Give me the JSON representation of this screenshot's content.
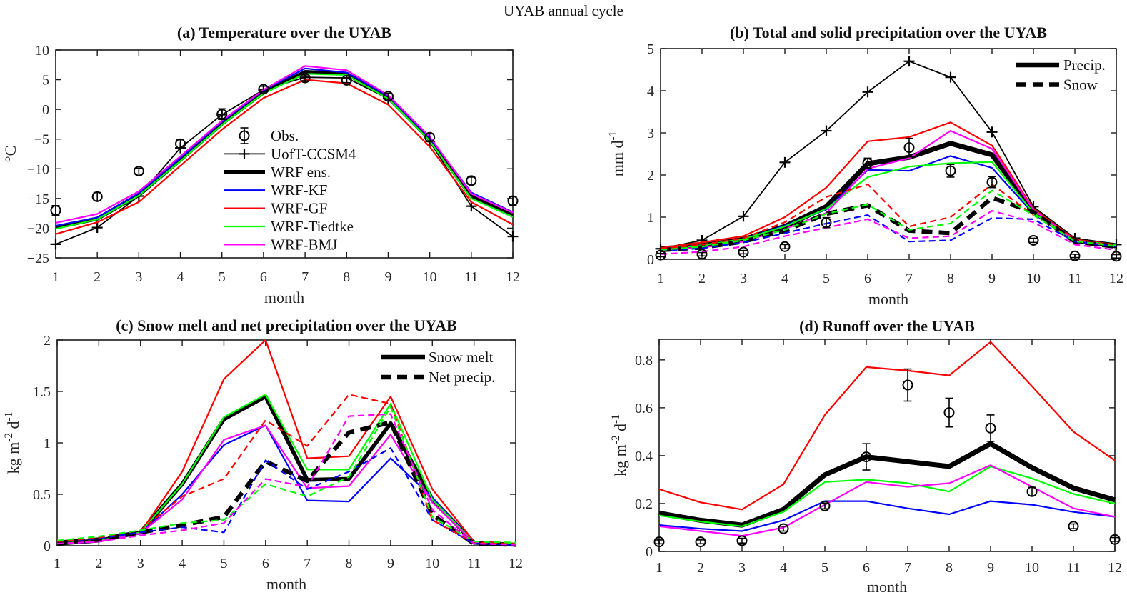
{
  "figure": {
    "title": "UYAB annual cycle"
  },
  "colors": {
    "obs": "#000000",
    "uoft_ccsm4": "#000000",
    "wrf_ens": "#000000",
    "wrf_kf": "#0000ff",
    "wrf_gf": "#ff0000",
    "wrf_tiedtke": "#00ff00",
    "wrf_bmj": "#ff00ff",
    "axis": "#1a1a1a"
  },
  "chart_data": [
    {
      "id": "a",
      "type": "line",
      "title": "(a) Temperature over the UYAB",
      "xlabel": "month",
      "ylabel": "°C",
      "x": [
        1,
        2,
        3,
        4,
        5,
        6,
        7,
        8,
        9,
        10,
        11,
        12
      ],
      "xlim": [
        1,
        12
      ],
      "ylim": [
        -25,
        10
      ],
      "yticks": [
        -25,
        -20,
        -15,
        -10,
        -5,
        0,
        5,
        10
      ],
      "grid": false,
      "legend": {
        "position": "inside-center-left",
        "entries": [
          {
            "label": "Obs.",
            "swatch": "circle-err",
            "color": "#000000"
          },
          {
            "label": "UofT-CCSM4",
            "swatch": "line-plus",
            "color": "#000000",
            "width": 1.8
          },
          {
            "label": "WRF ens.",
            "swatch": "line",
            "color": "#000000",
            "width": 5.5
          },
          {
            "label": "WRF-KF",
            "swatch": "line",
            "color": "#0000ff",
            "width": 2.2
          },
          {
            "label": "WRF-GF",
            "swatch": "line",
            "color": "#ff0000",
            "width": 2.2
          },
          {
            "label": "WRF-Tiedtke",
            "swatch": "line",
            "color": "#00ff00",
            "width": 2.2
          },
          {
            "label": "WRF-BMJ",
            "swatch": "line",
            "color": "#ff00ff",
            "width": 2.2
          }
        ]
      },
      "series": [
        {
          "name": "UofT-CCSM4",
          "color": "#000000",
          "style": "solid",
          "width": 1.8,
          "marker": "plus",
          "values": [
            -22.7,
            -19.9,
            -14.6,
            -6.5,
            -0.9,
            3.3,
            5.4,
            5.3,
            1.8,
            -5.4,
            -16.3,
            -21.4
          ]
        },
        {
          "name": "WRF ens.",
          "color": "#000000",
          "style": "solid",
          "width": 5.5,
          "values": [
            -19.9,
            -18.4,
            -14.4,
            -8.5,
            -2.4,
            2.9,
            6.3,
            6.0,
            2.0,
            -5.0,
            -14.7,
            -17.9
          ]
        },
        {
          "name": "WRF-KF",
          "color": "#0000ff",
          "style": "solid",
          "width": 2.2,
          "values": [
            -19.6,
            -18.2,
            -14.1,
            -8.2,
            -2.1,
            3.2,
            6.9,
            6.2,
            2.2,
            -4.8,
            -14.0,
            -17.3
          ]
        },
        {
          "name": "WRF-GF",
          "color": "#ff0000",
          "style": "solid",
          "width": 2.2,
          "values": [
            -21.0,
            -19.0,
            -15.6,
            -9.5,
            -3.4,
            1.9,
            5.0,
            4.4,
            0.8,
            -6.3,
            -15.6,
            -19.4
          ]
        },
        {
          "name": "WRF-Tiedtke",
          "color": "#00ff00",
          "style": "solid",
          "width": 2.2,
          "values": [
            -20.1,
            -18.5,
            -14.5,
            -8.7,
            -2.6,
            2.7,
            6.0,
            5.8,
            1.8,
            -5.3,
            -15.0,
            -18.1
          ]
        },
        {
          "name": "WRF-BMJ",
          "color": "#ff00ff",
          "style": "solid",
          "width": 2.2,
          "values": [
            -19.1,
            -17.6,
            -13.8,
            -7.9,
            -1.9,
            3.3,
            7.3,
            6.6,
            2.4,
            -4.6,
            -14.2,
            -17.4
          ]
        },
        {
          "name": "Obs.",
          "color": "#000000",
          "style": "none",
          "marker": "circle",
          "values": [
            -17.0,
            -14.7,
            -10.4,
            -5.8,
            -0.8,
            3.4,
            5.3,
            4.9,
            2.2,
            -4.7,
            -12.0,
            -15.4
          ],
          "errors": [
            0.8,
            0.7,
            0.5,
            0.7,
            0.9,
            0.5,
            0.5,
            0.4,
            0.5,
            0.6,
            0.6,
            0.7
          ]
        }
      ]
    },
    {
      "id": "b",
      "type": "line",
      "title": "(b) Total and solid precipitation over the UYAB",
      "xlabel": "month",
      "ylabel": "mm d^{-1}",
      "x": [
        1,
        2,
        3,
        4,
        5,
        6,
        7,
        8,
        9,
        10,
        11,
        12
      ],
      "xlim": [
        1,
        12
      ],
      "ylim": [
        0,
        5
      ],
      "yticks": [
        0,
        1,
        2,
        3,
        4,
        5
      ],
      "grid": false,
      "legend": {
        "position": "top-right",
        "entries": [
          {
            "label": "Precip.",
            "swatch": "line",
            "color": "#000000",
            "width": 6.5
          },
          {
            "label": "Snow",
            "swatch": "thick-dash",
            "color": "#000000",
            "width": 6.5
          }
        ]
      },
      "series": [
        {
          "name": "UofT-CCSM4 precip",
          "color": "#000000",
          "style": "solid",
          "width": 1.8,
          "marker": "plus",
          "values": [
            0.25,
            0.45,
            1.02,
            2.3,
            3.05,
            3.97,
            4.7,
            4.32,
            3.02,
            1.25,
            0.5,
            0.35
          ]
        },
        {
          "name": "WRF ens. precip",
          "color": "#000000",
          "style": "solid",
          "width": 7,
          "values": [
            0.25,
            0.32,
            0.47,
            0.78,
            1.25,
            2.27,
            2.42,
            2.75,
            2.48,
            1.15,
            0.45,
            0.32
          ]
        },
        {
          "name": "WRF-KF precip",
          "color": "#0000ff",
          "style": "solid",
          "width": 2.2,
          "values": [
            0.25,
            0.33,
            0.48,
            0.8,
            1.18,
            2.12,
            2.1,
            2.45,
            2.17,
            1.08,
            0.44,
            0.32
          ]
        },
        {
          "name": "WRF-GF precip",
          "color": "#ff0000",
          "style": "solid",
          "width": 2.2,
          "values": [
            0.27,
            0.4,
            0.55,
            1.0,
            1.7,
            2.8,
            2.9,
            3.25,
            2.7,
            1.2,
            0.47,
            0.34
          ]
        },
        {
          "name": "WRF-Tiedtke precip",
          "color": "#00ff00",
          "style": "solid",
          "width": 2.2,
          "values": [
            0.25,
            0.33,
            0.48,
            0.78,
            1.2,
            1.95,
            2.2,
            2.28,
            2.31,
            1.1,
            0.45,
            0.33
          ]
        },
        {
          "name": "WRF-BMJ precip",
          "color": "#ff00ff",
          "style": "solid",
          "width": 2.2,
          "values": [
            0.22,
            0.28,
            0.42,
            0.72,
            1.1,
            2.15,
            2.4,
            3.05,
            2.62,
            1.17,
            0.45,
            0.3
          ]
        },
        {
          "name": "WRF ens. snow",
          "color": "#000000",
          "style": "dashed",
          "width": 6,
          "values": [
            0.22,
            0.28,
            0.42,
            0.68,
            1.08,
            1.28,
            0.68,
            0.62,
            1.46,
            1.12,
            0.42,
            0.3
          ]
        },
        {
          "name": "WRF-KF snow",
          "color": "#0000ff",
          "style": "dashed",
          "width": 2.2,
          "values": [
            0.2,
            0.26,
            0.4,
            0.62,
            0.85,
            1.05,
            0.42,
            0.45,
            0.98,
            0.95,
            0.42,
            0.3
          ]
        },
        {
          "name": "WRF-GF snow",
          "color": "#ff0000",
          "style": "dashed",
          "width": 2.2,
          "values": [
            0.25,
            0.35,
            0.5,
            0.88,
            1.48,
            1.78,
            0.78,
            1.0,
            1.78,
            1.05,
            0.44,
            0.32
          ]
        },
        {
          "name": "WRF-Tiedtke snow",
          "color": "#00ff00",
          "style": "dashed",
          "width": 2.2,
          "values": [
            0.22,
            0.3,
            0.45,
            0.7,
            1.08,
            1.3,
            0.7,
            0.85,
            1.63,
            1.05,
            0.43,
            0.31
          ]
        },
        {
          "name": "WRF-BMJ snow",
          "color": "#ff00ff",
          "style": "dashed",
          "width": 2.2,
          "values": [
            0.12,
            0.18,
            0.3,
            0.55,
            0.75,
            0.95,
            0.5,
            0.55,
            1.15,
            0.88,
            0.35,
            0.22
          ]
        },
        {
          "name": "Obs. precip",
          "color": "#000000",
          "style": "none",
          "marker": "circle",
          "values": [
            0.1,
            0.12,
            0.17,
            0.3,
            0.87,
            2.28,
            2.65,
            2.1,
            1.83,
            0.45,
            0.08,
            0.07
          ],
          "errors": [
            0.04,
            0.04,
            0.04,
            0.05,
            0.12,
            0.12,
            0.22,
            0.15,
            0.13,
            0.05,
            0.04,
            0.04
          ]
        }
      ]
    },
    {
      "id": "c",
      "type": "line",
      "title": "(c) Snow melt and net precipitation over the UYAB",
      "xlabel": "month",
      "ylabel": "kg m^{-2} d^{-1}",
      "x": [
        1,
        2,
        3,
        4,
        5,
        6,
        7,
        8,
        9,
        10,
        11,
        12
      ],
      "xlim": [
        1,
        12
      ],
      "ylim": [
        0,
        2
      ],
      "yticks": [
        0,
        0.5,
        1,
        1.5,
        2
      ],
      "grid": false,
      "legend": {
        "position": "top-right",
        "entries": [
          {
            "label": "Snow melt",
            "swatch": "line",
            "color": "#000000",
            "width": 6.5
          },
          {
            "label": "Net precip.",
            "swatch": "thick-dash",
            "color": "#000000",
            "width": 6.5
          }
        ]
      },
      "series": [
        {
          "name": "WRF ens. snow melt",
          "color": "#000000",
          "style": "solid",
          "width": 5.5,
          "values": [
            0.02,
            0.05,
            0.13,
            0.6,
            1.23,
            1.45,
            0.64,
            0.65,
            1.19,
            0.45,
            0.03,
            0.01
          ]
        },
        {
          "name": "WRF-KF snow melt",
          "color": "#0000ff",
          "style": "solid",
          "width": 2.2,
          "values": [
            0.02,
            0.04,
            0.12,
            0.5,
            0.98,
            1.17,
            0.44,
            0.43,
            0.85,
            0.47,
            0.03,
            0.01
          ]
        },
        {
          "name": "WRF-GF snow melt",
          "color": "#ff0000",
          "style": "solid",
          "width": 2.2,
          "values": [
            0.02,
            0.05,
            0.13,
            0.72,
            1.62,
            2.0,
            0.85,
            0.87,
            1.45,
            0.55,
            0.04,
            0.02
          ]
        },
        {
          "name": "WRF-Tiedtke snow melt",
          "color": "#00ff00",
          "style": "solid",
          "width": 2.2,
          "values": [
            0.02,
            0.05,
            0.13,
            0.6,
            1.25,
            1.47,
            0.74,
            0.74,
            1.38,
            0.45,
            0.03,
            0.02
          ]
        },
        {
          "name": "WRF-BMJ snow melt",
          "color": "#ff00ff",
          "style": "solid",
          "width": 2.2,
          "values": [
            0.02,
            0.04,
            0.12,
            0.45,
            1.03,
            1.17,
            0.56,
            0.58,
            1.08,
            0.42,
            0.03,
            0.01
          ]
        },
        {
          "name": "WRF ens. net precip",
          "color": "#000000",
          "style": "dashed",
          "width": 6,
          "values": [
            0.03,
            0.06,
            0.13,
            0.2,
            0.28,
            0.82,
            0.63,
            1.1,
            1.2,
            0.3,
            0.02,
            0.01
          ]
        },
        {
          "name": "WRF-KF net precip",
          "color": "#0000ff",
          "style": "dashed",
          "width": 2.2,
          "values": [
            0.04,
            0.07,
            0.13,
            0.18,
            0.13,
            0.83,
            0.55,
            0.72,
            0.95,
            0.25,
            0.02,
            0.01
          ]
        },
        {
          "name": "WRF-GF net precip",
          "color": "#ff0000",
          "style": "dashed",
          "width": 2.2,
          "values": [
            0.04,
            0.08,
            0.15,
            0.48,
            0.65,
            1.22,
            0.97,
            1.47,
            1.38,
            0.25,
            0.03,
            0.02
          ]
        },
        {
          "name": "WRF-Tiedtke net precip",
          "color": "#00ff00",
          "style": "dashed",
          "width": 2.2,
          "values": [
            0.05,
            0.09,
            0.15,
            0.22,
            0.25,
            0.6,
            0.48,
            0.67,
            1.35,
            0.28,
            0.04,
            0.03
          ]
        },
        {
          "name": "WRF-BMJ net precip",
          "color": "#ff00ff",
          "style": "dashed",
          "width": 2.2,
          "values": [
            0.02,
            0.04,
            0.1,
            0.15,
            0.22,
            0.65,
            0.57,
            1.26,
            1.28,
            0.35,
            0.02,
            0.01
          ]
        }
      ]
    },
    {
      "id": "d",
      "type": "line",
      "title": "(d) Runoff over the UYAB",
      "xlabel": "month",
      "ylabel": "kg m^{-2} d^{-1}",
      "x": [
        1,
        2,
        3,
        4,
        5,
        6,
        7,
        8,
        9,
        10,
        11,
        12
      ],
      "xlim": [
        1,
        12
      ],
      "ylim": [
        0,
        0.886
      ],
      "yticks": [
        0,
        0.2,
        0.4,
        0.6,
        0.8
      ],
      "grid": false,
      "legend": null,
      "series": [
        {
          "name": "WRF ens. runoff",
          "color": "#000000",
          "style": "solid",
          "width": 7,
          "values": [
            0.16,
            0.13,
            0.11,
            0.175,
            0.32,
            0.395,
            0.375,
            0.355,
            0.45,
            0.35,
            0.265,
            0.215
          ]
        },
        {
          "name": "WRF-KF runoff",
          "color": "#0000ff",
          "style": "solid",
          "width": 2.2,
          "values": [
            0.11,
            0.095,
            0.085,
            0.13,
            0.21,
            0.21,
            0.18,
            0.155,
            0.21,
            0.195,
            0.165,
            0.145
          ]
        },
        {
          "name": "WRF-GF runoff",
          "color": "#ff0000",
          "style": "solid",
          "width": 2.2,
          "values": [
            0.26,
            0.205,
            0.175,
            0.28,
            0.57,
            0.77,
            0.755,
            0.735,
            0.875,
            0.69,
            0.5,
            0.38
          ]
        },
        {
          "name": "WRF-Tiedtke runoff",
          "color": "#00ff00",
          "style": "solid",
          "width": 2.2,
          "values": [
            0.15,
            0.125,
            0.105,
            0.165,
            0.29,
            0.3,
            0.285,
            0.25,
            0.355,
            0.305,
            0.24,
            0.2
          ]
        },
        {
          "name": "WRF-BMJ runoff",
          "color": "#ff00ff",
          "style": "solid",
          "width": 2.2,
          "values": [
            0.105,
            0.085,
            0.065,
            0.1,
            0.195,
            0.29,
            0.27,
            0.285,
            0.36,
            0.27,
            0.18,
            0.145
          ]
        },
        {
          "name": "Obs. runoff",
          "color": "#000000",
          "style": "none",
          "marker": "circle",
          "values": [
            0.04,
            0.04,
            0.045,
            0.095,
            0.19,
            0.395,
            0.695,
            0.58,
            0.515,
            0.25,
            0.105,
            0.05
          ],
          "errors": [
            0.008,
            0.008,
            0.01,
            0.01,
            0.012,
            0.055,
            0.067,
            0.06,
            0.055,
            0.018,
            0.01,
            0.008
          ]
        }
      ]
    }
  ]
}
